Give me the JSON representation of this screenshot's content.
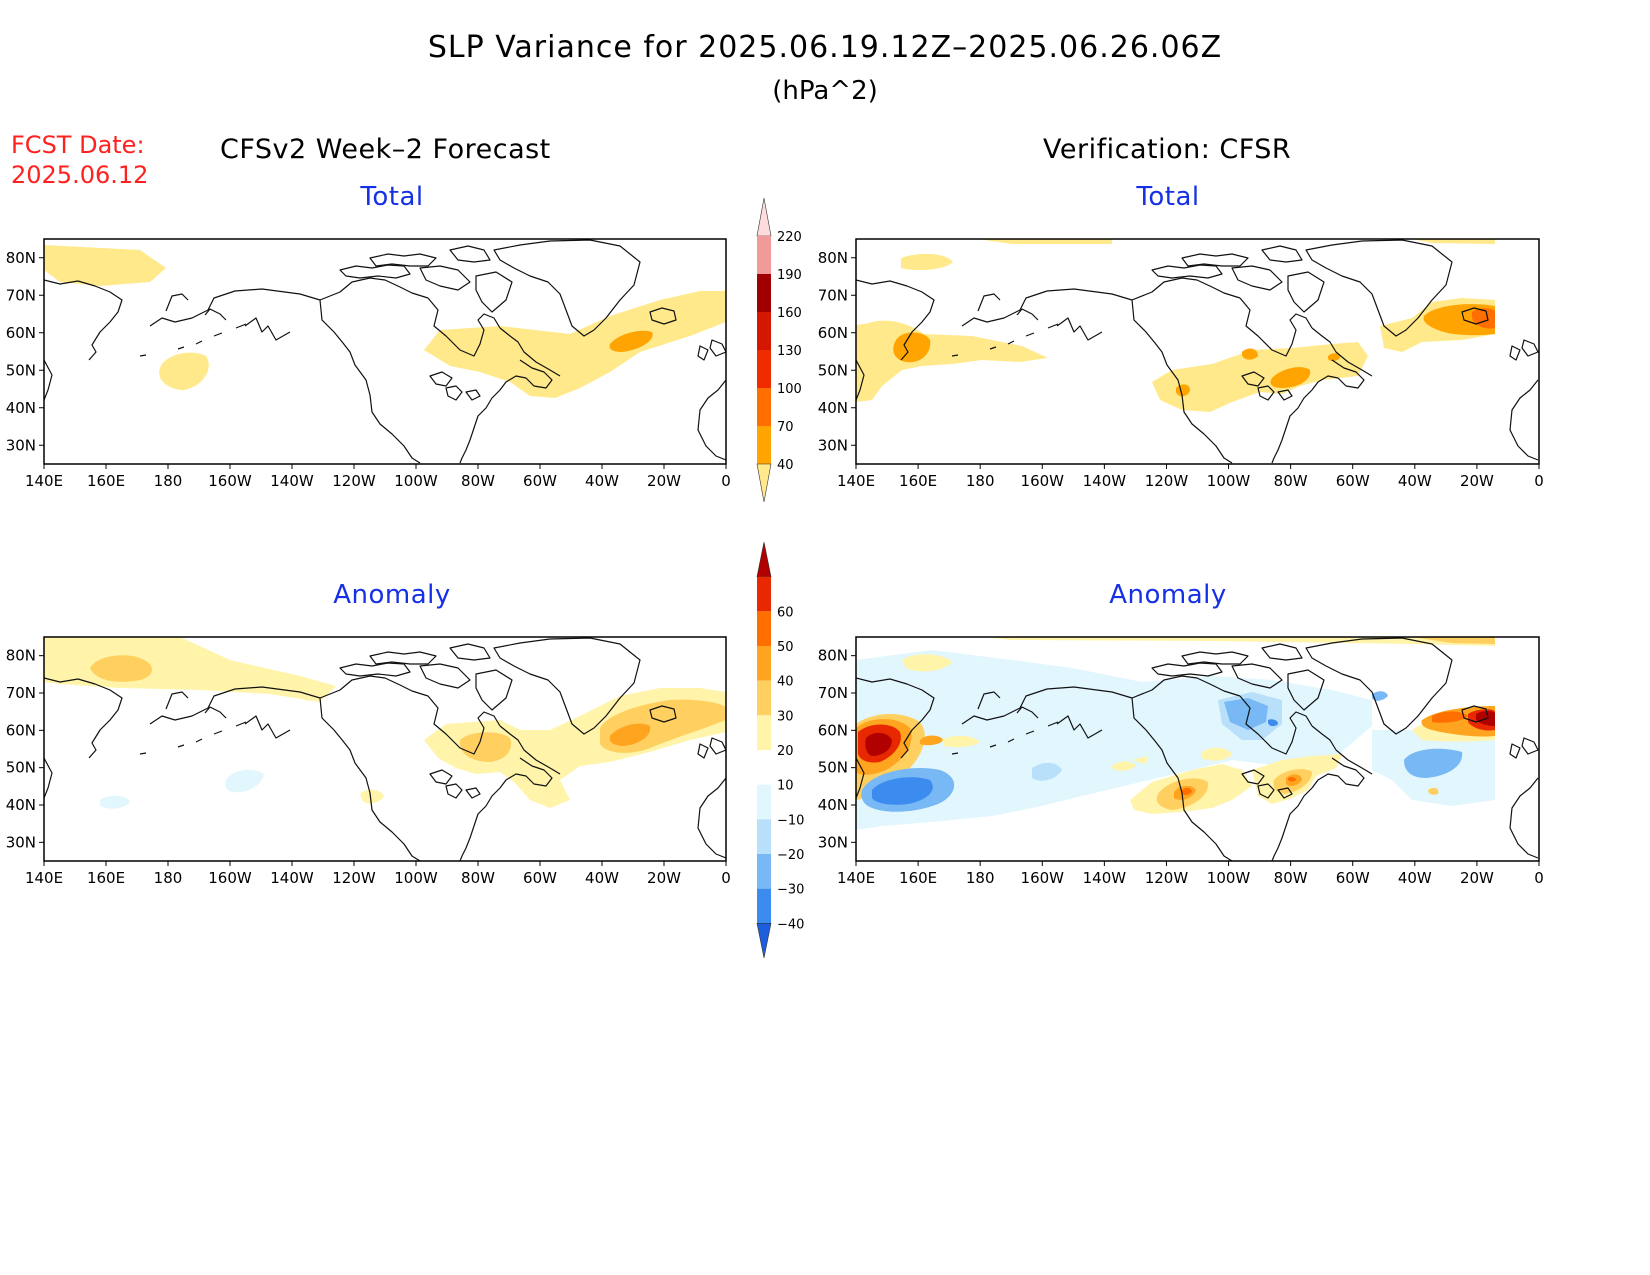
{
  "header": {
    "title": "SLP Variance for 2025.06.19.12Z–2025.06.26.06Z",
    "units": "(hPa^2)",
    "fcst_label": "FCST Date:",
    "fcst_date": "2025.06.12"
  },
  "columns": {
    "left": "CFSv2 Week–2 Forecast",
    "right": "Verification: CFSR"
  },
  "panels": [
    {
      "id": "forecast-total",
      "title": "Total"
    },
    {
      "id": "verification-total",
      "title": "Total"
    },
    {
      "id": "forecast-anomaly",
      "title": "Anomaly"
    },
    {
      "id": "verification-anomaly",
      "title": "Anomaly"
    }
  ],
  "axes": {
    "lon_ticks": [
      "140E",
      "160E",
      "180",
      "160W",
      "140W",
      "120W",
      "100W",
      "80W",
      "60W",
      "40W",
      "20W",
      "0"
    ],
    "lat_ticks": [
      "80N",
      "70N",
      "60N",
      "50N",
      "40N",
      "30N"
    ],
    "lon_range": [
      140,
      360
    ],
    "lat_range": [
      25,
      85
    ]
  },
  "colorbars": {
    "total": {
      "labels": [
        "40",
        "70",
        "100",
        "130",
        "160",
        "190",
        "220"
      ],
      "colors": [
        "#ffe98a",
        "#ffa400",
        "#ff6e00",
        "#ee2c00",
        "#d41800",
        "#a00000",
        "#f09a9a",
        "#fcdcdc"
      ]
    },
    "anomaly": {
      "labels": [
        "−40",
        "−30",
        "−20",
        "−10",
        "10",
        "20",
        "30",
        "40",
        "50",
        "60"
      ],
      "colors": [
        "#1d5edc",
        "#3c8cf0",
        "#78b8f4",
        "#b8e0fa",
        "#e2f6fe",
        "#ffffff",
        "#fff4aa",
        "#ffd060",
        "#ffa41e",
        "#ff6e00",
        "#e82800",
        "#b00000"
      ]
    }
  }
}
